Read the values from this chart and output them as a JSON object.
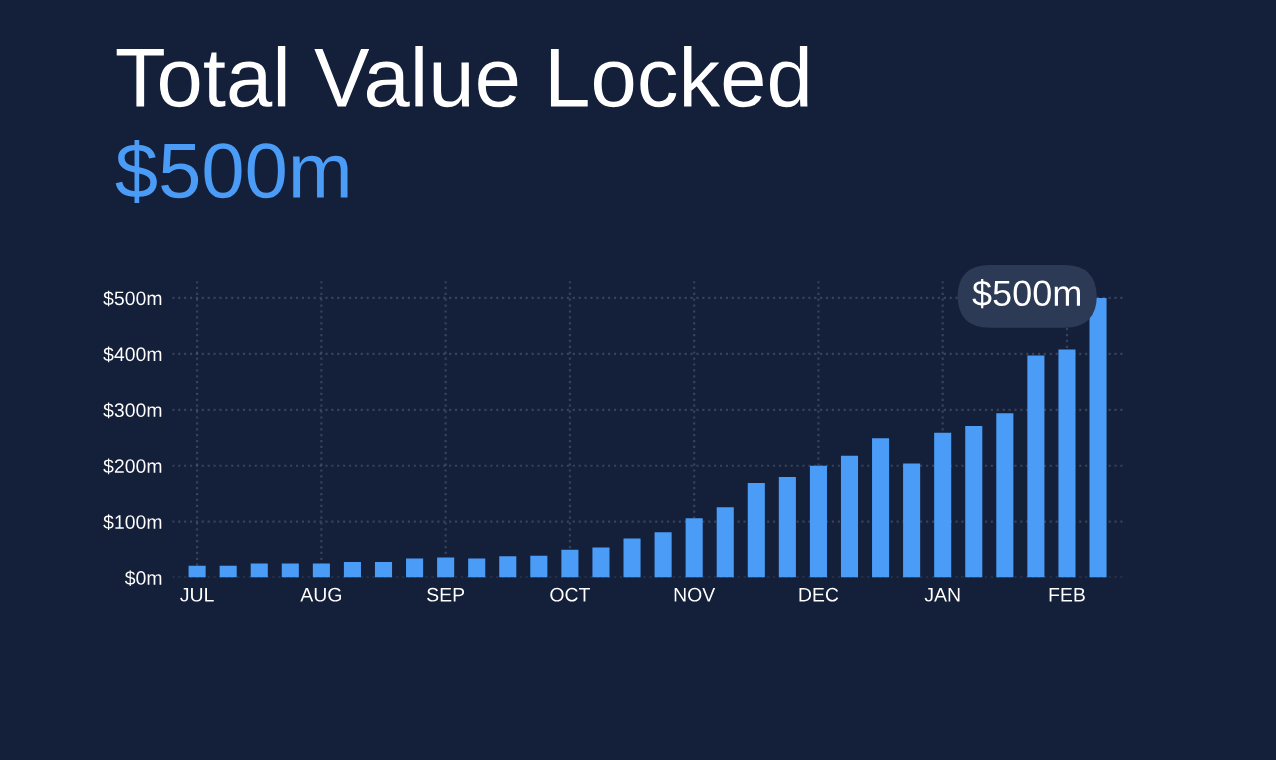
{
  "chart_data": {
    "type": "bar",
    "title": "Total Value Locked",
    "subtitle": "$500m",
    "categories": [
      "JUL",
      null,
      null,
      null,
      "AUG",
      null,
      null,
      null,
      "SEP",
      null,
      null,
      null,
      "OCT",
      null,
      null,
      null,
      "NOV",
      null,
      null,
      null,
      "DEC",
      null,
      null,
      null,
      "JAN",
      null,
      null,
      null,
      "FEB",
      null
    ],
    "values": [
      21,
      21,
      25,
      25,
      25,
      28,
      28,
      34,
      36,
      34,
      38,
      39,
      50,
      54,
      70,
      81,
      106,
      126,
      169,
      180,
      200,
      218,
      249,
      204,
      259,
      271,
      294,
      397,
      408,
      500
    ],
    "color": "#4a9cf6",
    "ylim": [
      0,
      530
    ],
    "yticks": [
      {
        "value": 0,
        "label": "$0m"
      },
      {
        "value": 100,
        "label": "$100m"
      },
      {
        "value": 200,
        "label": "$200m"
      },
      {
        "value": 300,
        "label": "$300m"
      },
      {
        "value": 400,
        "label": "$400m"
      },
      {
        "value": 500,
        "label": "$500m"
      }
    ],
    "annotations": [
      "$500m"
    ],
    "grid": true
  }
}
